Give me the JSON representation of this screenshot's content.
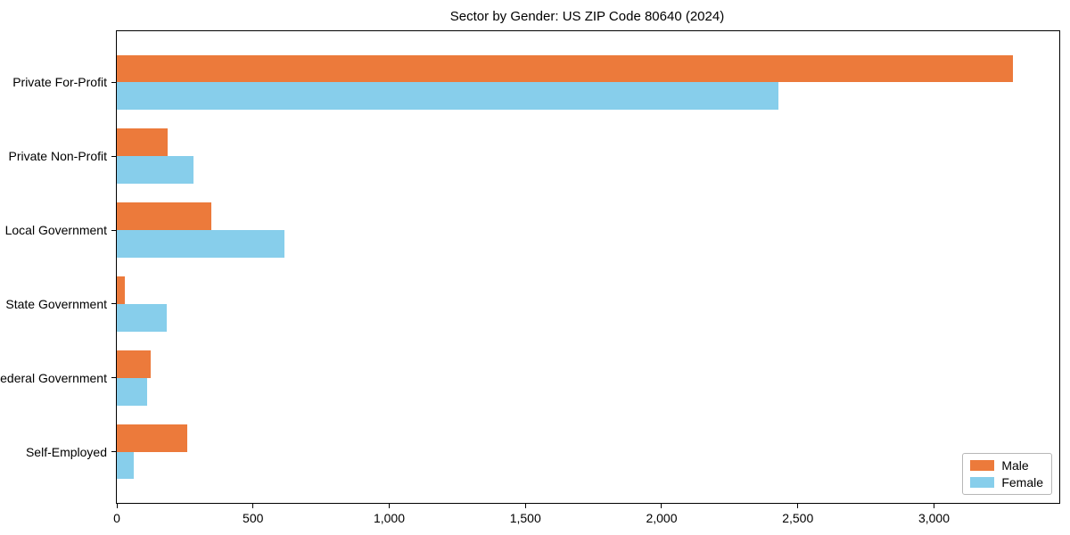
{
  "title": "Sector by Gender: US ZIP Code 80640 (2024)",
  "colors": {
    "male": "#EC7A3B",
    "female": "#87CEEB",
    "spine": "#000000",
    "legend_border": "#B7B7B7",
    "text": "#000000",
    "background": "#FFFFFF"
  },
  "legend": {
    "position": "lower right",
    "items": [
      "Male",
      "Female"
    ]
  },
  "chart_data": {
    "type": "bar",
    "orientation": "horizontal",
    "title": "Sector by Gender: US ZIP Code 80640 (2024)",
    "categories": [
      "Private For-Profit",
      "Private Non-Profit",
      "Local Government",
      "State Government",
      "Federal Government",
      "Self-Employed"
    ],
    "series": [
      {
        "name": "Male",
        "color": "#EC7A3B",
        "values": [
          3290,
          185,
          348,
          28,
          126,
          260
        ]
      },
      {
        "name": "Female",
        "color": "#87CEEB",
        "values": [
          2430,
          283,
          614,
          182,
          110,
          61
        ]
      }
    ],
    "xlabel": "",
    "ylabel": "",
    "xlim": [
      0,
      3460
    ],
    "xticks": [
      0,
      500,
      1000,
      1500,
      2000,
      2500,
      3000
    ],
    "xtick_labels": [
      "0",
      "500",
      "1,000",
      "1,500",
      "2,000",
      "2,500",
      "3,000"
    ],
    "grid": false,
    "legend_position": "lower right"
  }
}
